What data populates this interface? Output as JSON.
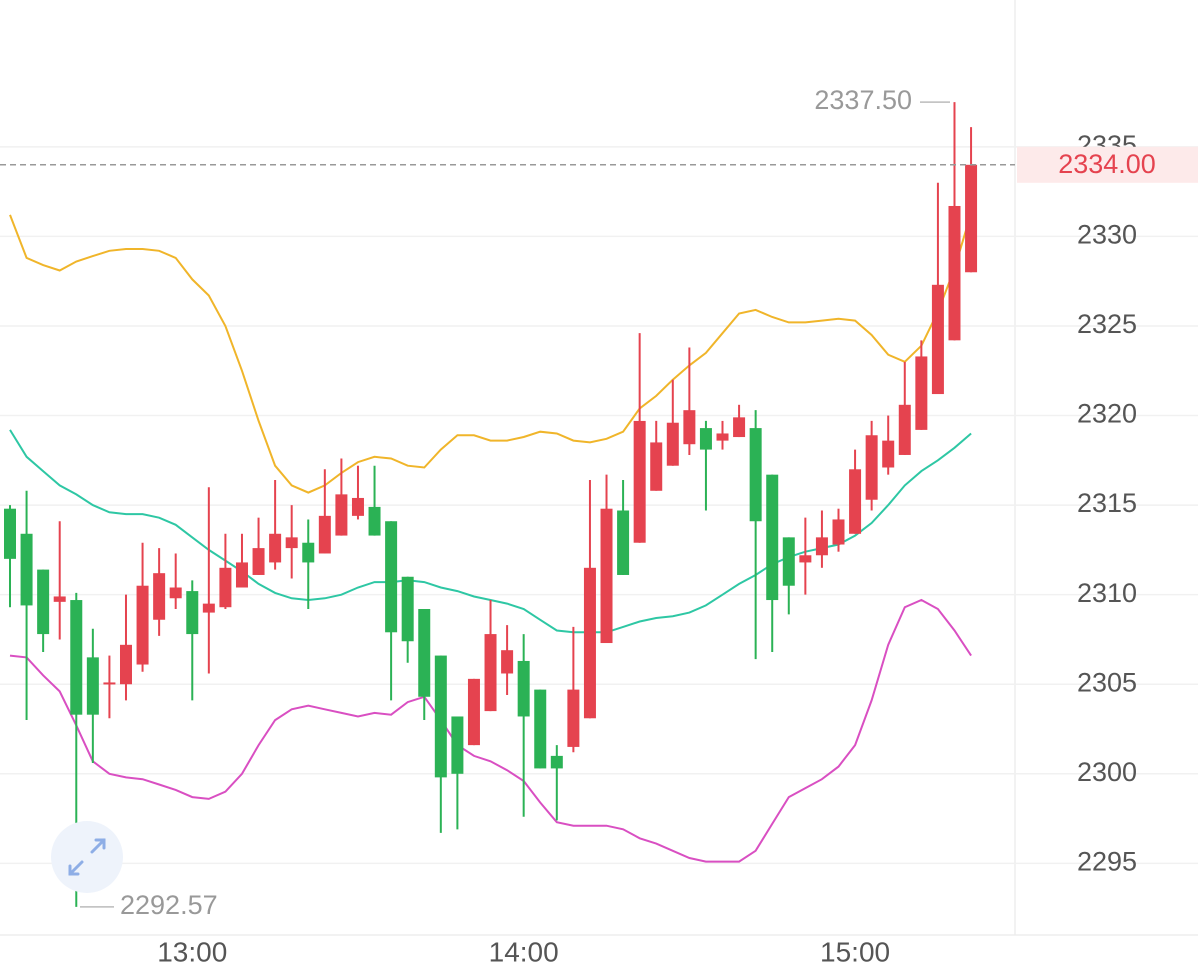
{
  "chart_data": {
    "type": "candlestick",
    "categories": [
      null,
      null,
      null,
      null,
      null,
      null,
      null,
      null,
      null,
      null,
      null,
      "13:00",
      null,
      null,
      null,
      null,
      null,
      null,
      null,
      null,
      null,
      null,
      null,
      null,
      null,
      null,
      null,
      null,
      null,
      null,
      null,
      "14:00",
      null,
      null,
      null,
      null,
      null,
      null,
      null,
      null,
      null,
      null,
      null,
      null,
      null,
      null,
      null,
      null,
      null,
      null,
      null,
      "15:00",
      null,
      null,
      null,
      null,
      null,
      null,
      null
    ],
    "open": [
      2314.8,
      2313.4,
      2311.4,
      2309.6,
      2309.7,
      2306.5,
      2305.0,
      2305.0,
      2306.1,
      2308.6,
      2309.8,
      2310.2,
      2309.0,
      2309.3,
      2310.4,
      2311.1,
      2311.8,
      2312.6,
      2312.9,
      2312.3,
      2313.3,
      2314.4,
      2314.9,
      2314.1,
      2311.0,
      2309.2,
      2306.6,
      2303.2,
      2301.6,
      2303.5,
      2305.6,
      2306.3,
      2304.7,
      2301.0,
      2301.5,
      2303.1,
      2307.3,
      2314.7,
      2312.9,
      2315.8,
      2317.2,
      2318.4,
      2319.3,
      2318.6,
      2318.8,
      2319.3,
      2316.7,
      2313.2,
      2311.8,
      2312.2,
      2312.8,
      2313.4,
      2315.3,
      2317.1,
      2317.8,
      2319.2,
      2321.2,
      2324.2,
      2328.0
    ],
    "high": [
      2315.0,
      2315.8,
      2311.4,
      2314.1,
      2310.1,
      2308.1,
      2306.6,
      2310.0,
      2312.9,
      2312.6,
      2312.3,
      2310.8,
      2316.0,
      2313.4,
      2313.4,
      2314.3,
      2316.4,
      2315.0,
      2314.2,
      2317.0,
      2317.6,
      2317.2,
      2317.2,
      2314.1,
      2311.0,
      2309.2,
      2306.6,
      2303.2,
      2305.3,
      2309.7,
      2308.3,
      2307.8,
      2304.7,
      2301.6,
      2308.2,
      2316.4,
      2316.7,
      2316.4,
      2324.6,
      2319.7,
      2322.0,
      2323.8,
      2319.7,
      2319.7,
      2320.6,
      2320.3,
      2316.7,
      2313.2,
      2314.3,
      2314.7,
      2314.8,
      2318.1,
      2319.7,
      2320.0,
      2323.0,
      2324.2,
      2333.0,
      2337.5,
      2336.1
    ],
    "low": [
      2309.3,
      2303.0,
      2306.8,
      2307.5,
      2292.57,
      2300.6,
      2303.1,
      2304.1,
      2305.7,
      2307.7,
      2309.2,
      2304.1,
      2305.6,
      2309.2,
      2310.4,
      2311.1,
      2311.4,
      2310.9,
      2309.2,
      2312.3,
      2313.3,
      2314.2,
      2313.3,
      2304.1,
      2306.2,
      2303.0,
      2296.7,
      2296.9,
      2301.6,
      2303.5,
      2304.4,
      2297.6,
      2300.3,
      2297.4,
      2301.2,
      2303.1,
      2307.3,
      2311.1,
      2312.9,
      2315.8,
      2317.2,
      2317.8,
      2314.7,
      2318.1,
      2318.8,
      2306.4,
      2306.8,
      2308.9,
      2310.0,
      2311.5,
      2312.4,
      2313.4,
      2314.7,
      2316.7,
      2317.8,
      2319.2,
      2321.2,
      2324.2,
      2328.0
    ],
    "close": [
      2312.0,
      2309.4,
      2307.8,
      2309.9,
      2303.3,
      2303.3,
      2305.1,
      2307.2,
      2310.5,
      2311.2,
      2310.4,
      2307.8,
      2309.5,
      2311.5,
      2311.8,
      2312.6,
      2313.4,
      2313.2,
      2311.8,
      2314.4,
      2315.6,
      2315.4,
      2313.3,
      2307.9,
      2307.4,
      2304.3,
      2299.8,
      2300.0,
      2305.3,
      2307.8,
      2306.9,
      2303.2,
      2300.3,
      2300.3,
      2304.7,
      2311.5,
      2314.8,
      2311.1,
      2319.7,
      2318.5,
      2319.6,
      2320.3,
      2318.1,
      2319.0,
      2319.9,
      2314.1,
      2309.7,
      2310.5,
      2312.2,
      2313.2,
      2314.2,
      2317.0,
      2318.9,
      2318.6,
      2320.6,
      2323.3,
      2327.3,
      2331.7,
      2334.0
    ],
    "up_color": "#e5434f",
    "down_color": "#2bb255",
    "lines": [
      {
        "color": "#f0b52a",
        "values": [
          2331.2,
          2328.8,
          2328.4,
          2328.1,
          2328.6,
          2328.9,
          2329.2,
          2329.3,
          2329.3,
          2329.2,
          2328.8,
          2327.6,
          2326.7,
          2325.0,
          2322.5,
          2319.7,
          2317.2,
          2316.1,
          2315.7,
          2316.1,
          2316.8,
          2317.4,
          2317.7,
          2317.6,
          2317.2,
          2317.1,
          2318.1,
          2318.9,
          2318.9,
          2318.6,
          2318.6,
          2318.8,
          2319.1,
          2319.0,
          2318.6,
          2318.5,
          2318.7,
          2319.1,
          2320.4,
          2321.1,
          2322.0,
          2322.8,
          2323.5,
          2324.6,
          2325.7,
          2325.9,
          2325.5,
          2325.2,
          2325.2,
          2325.3,
          2325.4,
          2325.3,
          2324.5,
          2323.4,
          2323.0,
          2323.9,
          2325.8,
          2328.2,
          2331.3
        ]
      },
      {
        "color": "#2ec7a4",
        "values": [
          2319.2,
          2317.7,
          2316.9,
          2316.1,
          2315.6,
          2315.0,
          2314.6,
          2314.5,
          2314.5,
          2314.3,
          2313.9,
          2313.2,
          2312.5,
          2311.9,
          2311.3,
          2310.6,
          2310.1,
          2309.8,
          2309.7,
          2309.8,
          2310.0,
          2310.4,
          2310.7,
          2310.7,
          2310.8,
          2310.7,
          2310.4,
          2310.2,
          2309.9,
          2309.7,
          2309.5,
          2309.2,
          2308.6,
          2308.0,
          2307.9,
          2307.9,
          2307.9,
          2308.2,
          2308.5,
          2308.7,
          2308.8,
          2309.0,
          2309.4,
          2310.0,
          2310.6,
          2311.1,
          2311.7,
          2312.1,
          2312.4,
          2312.6,
          2312.8,
          2313.3,
          2314.0,
          2315.0,
          2316.1,
          2316.9,
          2317.5,
          2318.2,
          2319.0
        ]
      },
      {
        "color": "#d94fc2",
        "values": [
          2306.6,
          2306.5,
          2305.5,
          2304.6,
          2302.7,
          2300.7,
          2300.0,
          2299.8,
          2299.7,
          2299.4,
          2299.1,
          2298.7,
          2298.6,
          2299.0,
          2300.0,
          2301.6,
          2303.0,
          2303.6,
          2303.8,
          2303.6,
          2303.4,
          2303.2,
          2303.4,
          2303.3,
          2304.0,
          2304.3,
          2303.0,
          2301.6,
          2301.0,
          2300.7,
          2300.2,
          2299.6,
          2298.4,
          2297.3,
          2297.1,
          2297.1,
          2297.1,
          2296.9,
          2296.4,
          2296.1,
          2295.7,
          2295.3,
          2295.1,
          2295.1,
          2295.1,
          2295.7,
          2297.2,
          2298.7,
          2299.2,
          2299.7,
          2300.4,
          2301.6,
          2304.1,
          2307.2,
          2309.3,
          2309.7,
          2309.2,
          2308.0,
          2306.6
        ]
      }
    ],
    "ylim": [
      2291,
      2343.2
    ],
    "yticks": [
      2295,
      2300,
      2305,
      2310,
      2315,
      2320,
      2325,
      2330,
      2335
    ],
    "grid": true,
    "high_marker": {
      "value": 2337.5,
      "label": "2337.50"
    },
    "low_marker": {
      "value": 2292.57,
      "label": "2292.57"
    },
    "last_price": {
      "value": 2334,
      "label": "2334.00"
    }
  }
}
